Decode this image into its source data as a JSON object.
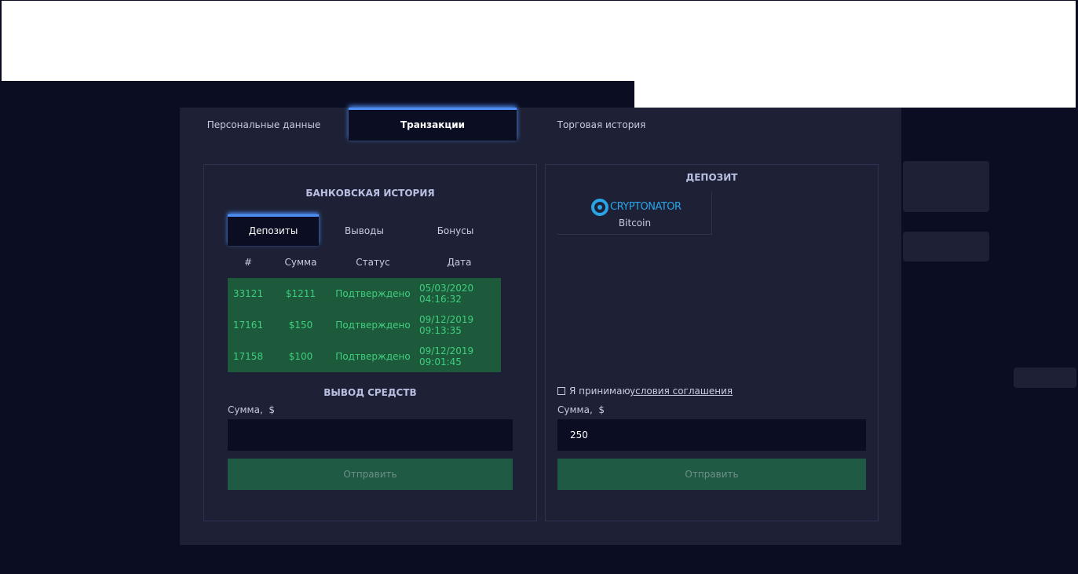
{
  "tabs": [
    "Персональные данные",
    "Транзакции",
    "Торговая история"
  ],
  "bank_history": {
    "title": "БАНКОВСКАЯ ИСТОРИЯ",
    "subtabs": [
      "Депозиты",
      "Выводы",
      "Бонусы"
    ],
    "columns": [
      "#",
      "Сумма",
      "Статус",
      "Дата"
    ],
    "rows": [
      {
        "id": "33121",
        "amount": "$1211",
        "status": "Подтверждено",
        "date": "05/03/2020",
        "time": "04:16:32"
      },
      {
        "id": "17161",
        "amount": "$150",
        "status": "Подтверждено",
        "date": "09/12/2019",
        "time": "09:13:35"
      },
      {
        "id": "17158",
        "amount": "$100",
        "status": "Подтверждено",
        "date": "09/12/2019",
        "time": "09:01:45"
      }
    ]
  },
  "withdraw": {
    "title": "ВЫВОД СРЕДСТВ",
    "amount_label": "Сумма,  $",
    "button": "Отправить"
  },
  "deposit": {
    "title": "ДЕПОЗИТ",
    "provider_logo": "CRYPTONATOR",
    "provider_name": "Bitcoin",
    "agreement_text": "Я принимаю",
    "agreement_link": "условия соглашения",
    "amount_label": "Сумма,  $",
    "amount_value": "250",
    "button": "Отправить"
  }
}
